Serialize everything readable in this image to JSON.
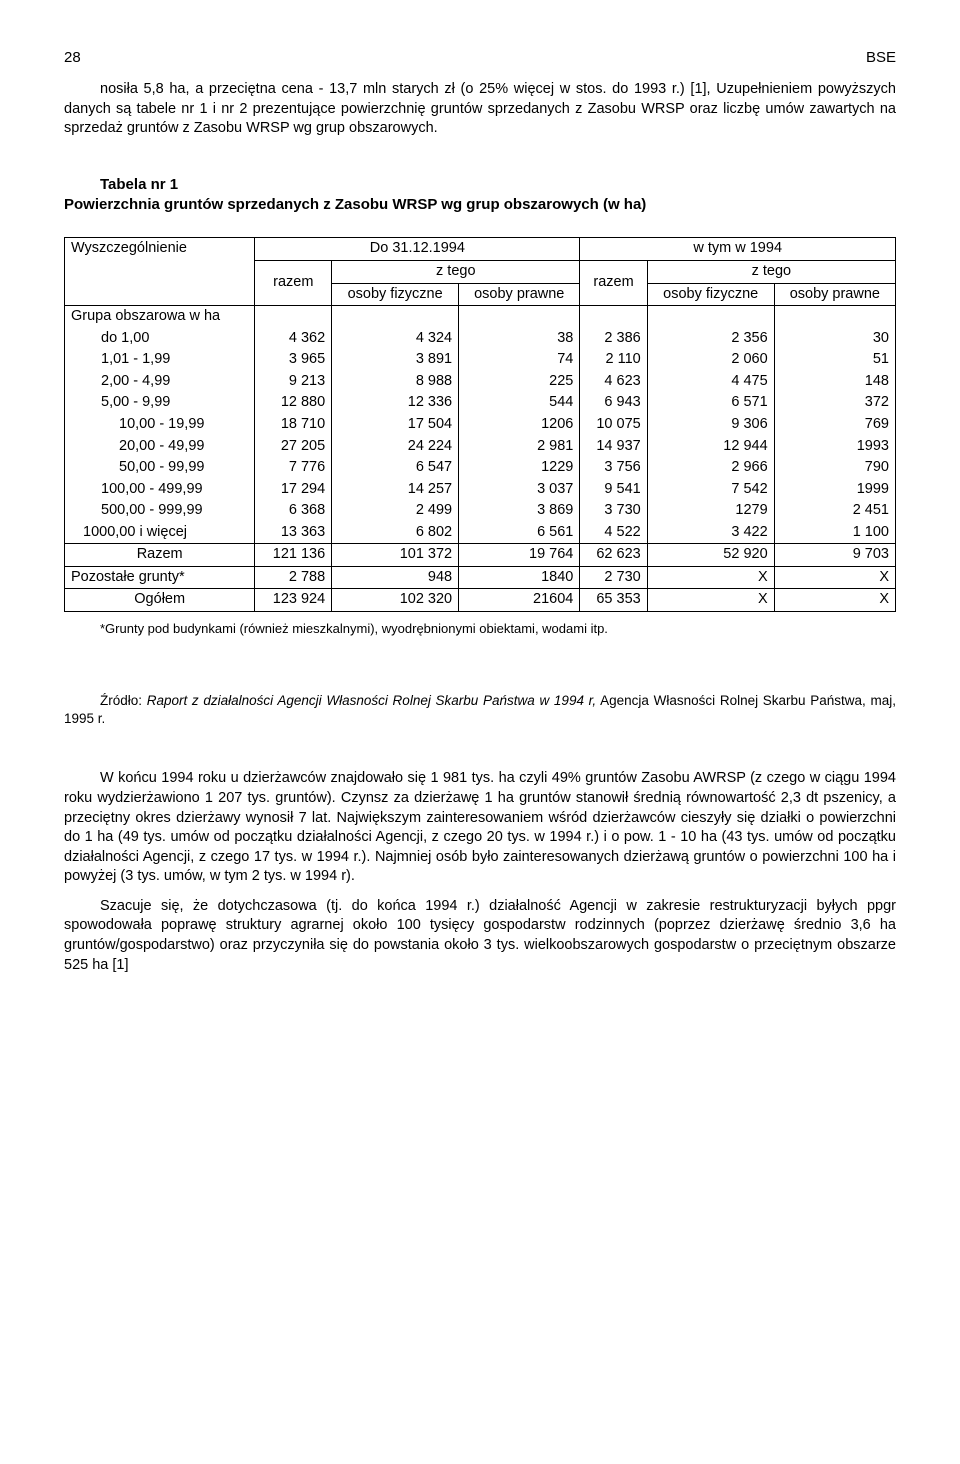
{
  "page_number": "28",
  "header_right": "BSE",
  "intro_para": "nosiła 5,8 ha, a przeciętna cena - 13,7 mln starych zł (o 25% więcej w stos. do 1993 r.) [1], Uzupełnieniem powyższych danych są tabele nr 1 i nr 2 prezentujące powierzchnię gruntów sprzedanych z Zasobu WRSP oraz liczbę umów zawartych na sprzedaż gruntów z Zasobu WRSP wg grup obszarowych.",
  "table_caption_a": "Tabela nr 1",
  "table_caption_b": "Powierzchnia gruntów sprzedanych z Zasobu WRSP wg grup obszarowych (w ha)",
  "col_headers": {
    "wysz": "Wyszczególnienie",
    "do_date": "Do 31.12.1994",
    "wtym": "w tym w 1994",
    "razem": "razem",
    "ztego": "z tego",
    "osoby_fiz": "osoby fizyczne",
    "osoby_praw": "osoby prawne"
  },
  "group_header": "Grupa obszarowa w ha",
  "rows": [
    {
      "label": "do 1,00",
      "ind": "ind2",
      "v": [
        "4 362",
        "4 324",
        "38",
        "2 386",
        "2 356",
        "30"
      ]
    },
    {
      "label": "1,01 - 1,99",
      "ind": "ind2",
      "v": [
        "3 965",
        "3 891",
        "74",
        "2 110",
        "2 060",
        "51"
      ]
    },
    {
      "label": "2,00 - 4,99",
      "ind": "ind2",
      "v": [
        "9 213",
        "8 988",
        "225",
        "4 623",
        "4 475",
        "148"
      ]
    },
    {
      "label": "5,00 - 9,99",
      "ind": "ind2",
      "v": [
        "12 880",
        "12 336",
        "544",
        "6 943",
        "6 571",
        "372"
      ]
    },
    {
      "label": "10,00 - 19,99",
      "ind": "ind3",
      "v": [
        "18 710",
        "17 504",
        "1206",
        "10 075",
        "9 306",
        "769"
      ]
    },
    {
      "label": "20,00 - 49,99",
      "ind": "ind3",
      "v": [
        "27 205",
        "24 224",
        "2 981",
        "14 937",
        "12 944",
        "1993"
      ]
    },
    {
      "label": "50,00 - 99,99",
      "ind": "ind3",
      "v": [
        "7 776",
        "6 547",
        "1229",
        "3 756",
        "2 966",
        "790"
      ]
    },
    {
      "label": "100,00 - 499,99",
      "ind": "ind2",
      "v": [
        "17 294",
        "14 257",
        "3 037",
        "9 541",
        "7 542",
        "1999"
      ]
    },
    {
      "label": "500,00 - 999,99",
      "ind": "ind2",
      "v": [
        "6 368",
        "2 499",
        "3 869",
        "3 730",
        "1279",
        "2 451"
      ]
    },
    {
      "label": "1000,00 i więcej",
      "ind": "ind1",
      "v": [
        "13 363",
        "6 802",
        "6 561",
        "4 522",
        "3 422",
        "1 100"
      ]
    }
  ],
  "sum_rows": [
    {
      "label": "Razem",
      "cls": "razem",
      "v": [
        "121 136",
        "101 372",
        "19 764",
        "62 623",
        "52 920",
        "9 703"
      ]
    },
    {
      "label": "Pozostałe grunty*",
      "cls": "pozo",
      "v": [
        "2 788",
        "948",
        "1840",
        "2 730",
        "X",
        "X"
      ]
    },
    {
      "label": "Ogółem",
      "cls": "ogolem",
      "v": [
        "123 924",
        "102 320",
        "21604",
        "65 353",
        "X",
        "X"
      ]
    }
  ],
  "footnote": "*Grunty pod budynkami (również mieszkalnymi), wyodrębnionymi obiektami, wodami itp.",
  "source_prefix": "Źródło: ",
  "source_italic": "Raport z działalności Agencji Własności Rolnej Skarbu Państwa w 1994 r,",
  "source_rest": " Agencja Własności Rolnej Skarbu Państwa, maj, 1995 r.",
  "body_paras": [
    "W końcu 1994 roku u dzierżawców znajdowało się 1 981 tys. ha czyli 49% gruntów Zasobu AWRSP (z czego w ciągu 1994 roku wydzierżawiono 1 207 tys. gruntów). Czynsz za dzierżawę 1 ha gruntów stanowił średnią równowartość 2,3 dt pszenicy, a przeciętny okres dzierżawy wynosił 7 lat. Największym zainteresowaniem wśród dzierżawców cieszyły się działki o powierzchni do 1 ha (49 tys. umów od początku działalności Agencji, z czego 20 tys. w 1994 r.) i o pow. 1 - 10 ha (43 tys. umów od początku działalności Agencji, z czego 17 tys. w 1994 r.). Najmniej osób było zainteresowanych dzierżawą gruntów o powierzchni 100 ha i powyżej (3 tys. umów, w tym 2 tys. w 1994 r).",
    "Szacuje się, że dotychczasowa (tj. do końca 1994 r.) działalność Agencji w zakresie restrukturyzacji byłych ppgr spowodowała poprawę struktury agrarnej około 100 tysięcy gospodarstw rodzinnych (poprzez dzierżawę średnio 3,6 ha gruntów/gospodarstwo) oraz przyczyniła się do powstania około 3 tys. wielkoobszarowych gospodarstw o przeciętnym obszarze 525 ha [1]"
  ]
}
